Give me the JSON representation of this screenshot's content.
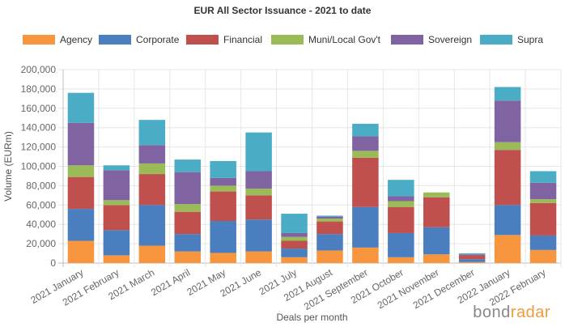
{
  "chart_data": {
    "type": "bar",
    "stacked": true,
    "title": "EUR All Sector Issuance - 2021 to date",
    "xlabel": "Deals per month",
    "ylabel": "Volume (EURm)",
    "ylim": [
      0,
      200000
    ],
    "yticks": [
      "0",
      "20,000",
      "40,000",
      "60,000",
      "80,000",
      "100,000",
      "120,000",
      "140,000",
      "160,000",
      "180,000",
      "200,000"
    ],
    "grid": true,
    "legend_position": "top",
    "categories": [
      "2021 January",
      "2021 February",
      "2021 March",
      "2021 April",
      "2021 May",
      "2021 June",
      "2021 July",
      "2021 August",
      "2021 September",
      "2021 October",
      "2021 November",
      "2021 December",
      "2022 January",
      "2022 February"
    ],
    "series": [
      {
        "name": "Agency",
        "color": "#f7963f",
        "values": [
          23000,
          8000,
          18000,
          12000,
          10500,
          12000,
          6000,
          13000,
          16000,
          6000,
          9000,
          1000,
          29000,
          13500
        ]
      },
      {
        "name": "Corporate",
        "color": "#4a7ebf",
        "values": [
          33000,
          26000,
          42000,
          18000,
          33000,
          33000,
          9000,
          17000,
          42000,
          25000,
          28000,
          3000,
          31000,
          15000
        ]
      },
      {
        "name": "Financial",
        "color": "#c0504d",
        "values": [
          33000,
          26000,
          32000,
          23000,
          30500,
          25000,
          8000,
          13000,
          51000,
          27000,
          31000,
          4000,
          57000,
          33500
        ]
      },
      {
        "name": "Muni/Local Gov't",
        "color": "#9bbb59",
        "values": [
          12000,
          5000,
          11000,
          8000,
          6000,
          7000,
          4000,
          3000,
          7000,
          6000,
          5000,
          0,
          8000,
          4000
        ]
      },
      {
        "name": "Sovereign",
        "color": "#8064a2",
        "values": [
          44000,
          31000,
          19000,
          33000,
          8000,
          18000,
          4000,
          2000,
          15000,
          5000,
          0,
          1000,
          43000,
          17000
        ]
      },
      {
        "name": "Supra",
        "color": "#4bacc6",
        "values": [
          31000,
          5000,
          26000,
          13000,
          17500,
          40000,
          20000,
          1000,
          13000,
          17000,
          0,
          1000,
          14000,
          12000
        ]
      }
    ]
  },
  "watermark": {
    "part1": "bond",
    "part2": "radar"
  }
}
